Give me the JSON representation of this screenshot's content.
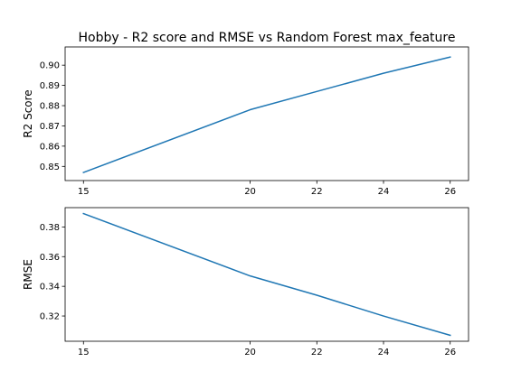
{
  "chart_data": [
    {
      "type": "line",
      "title": "Hobby - R2 score and RMSE vs Random Forest max_feature",
      "xlabel": "",
      "ylabel": "R2 Score",
      "x": [
        15,
        20,
        22,
        24,
        26
      ],
      "xticks": [
        "15",
        "20",
        "22",
        "24",
        "26"
      ],
      "values": [
        0.847,
        0.878,
        0.887,
        0.896,
        0.904
      ],
      "ylim": [
        0.843,
        0.909
      ],
      "yticks": [
        "0.85",
        "0.86",
        "0.87",
        "0.88",
        "0.89",
        "0.90"
      ],
      "ytick_values": [
        0.85,
        0.86,
        0.87,
        0.88,
        0.89,
        0.9
      ],
      "grid": false,
      "color": "#1f77b4"
    },
    {
      "type": "line",
      "title": "",
      "xlabel": "",
      "ylabel": "RMSE",
      "x": [
        15,
        20,
        22,
        24,
        26
      ],
      "xticks": [
        "15",
        "20",
        "22",
        "24",
        "26"
      ],
      "values": [
        0.389,
        0.347,
        0.334,
        0.32,
        0.307
      ],
      "ylim": [
        0.303,
        0.393
      ],
      "yticks": [
        "0.32",
        "0.34",
        "0.36",
        "0.38"
      ],
      "ytick_values": [
        0.32,
        0.34,
        0.36,
        0.38
      ],
      "grid": false,
      "color": "#1f77b4"
    }
  ]
}
